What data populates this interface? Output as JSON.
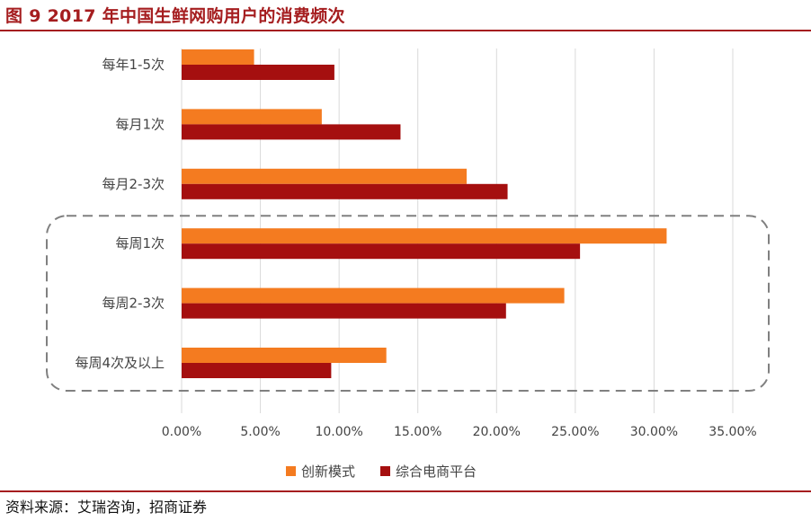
{
  "title": "图 9 2017 年中国生鲜网购用户的消费频次",
  "source": "资料来源：艾瑞咨询，招商证券",
  "chart_data": {
    "type": "bar",
    "orientation": "horizontal",
    "categories": [
      "每年1-5次",
      "每月1次",
      "每月2-3次",
      "每周1次",
      "每周2-3次",
      "每周4次及以上"
    ],
    "series": [
      {
        "name": "创新模式",
        "color": "#f47b20",
        "values": [
          4.6,
          8.9,
          18.1,
          30.8,
          24.3,
          13.0
        ]
      },
      {
        "name": "综合电商平台",
        "color": "#a50f0f",
        "values": [
          9.7,
          13.9,
          20.7,
          25.3,
          20.6,
          9.5
        ]
      }
    ],
    "xlim": [
      0,
      35
    ],
    "xticks": [
      0,
      5,
      10,
      15,
      20,
      25,
      30,
      35
    ],
    "xtick_labels": [
      "0.00%",
      "5.00%",
      "10.00%",
      "15.00%",
      "20.00%",
      "25.00%",
      "30.00%",
      "35.00%"
    ],
    "grid": true,
    "legend_position": "bottom",
    "highlight_box_categories": [
      "每周1次",
      "每周2-3次",
      "每周4次及以上"
    ]
  }
}
